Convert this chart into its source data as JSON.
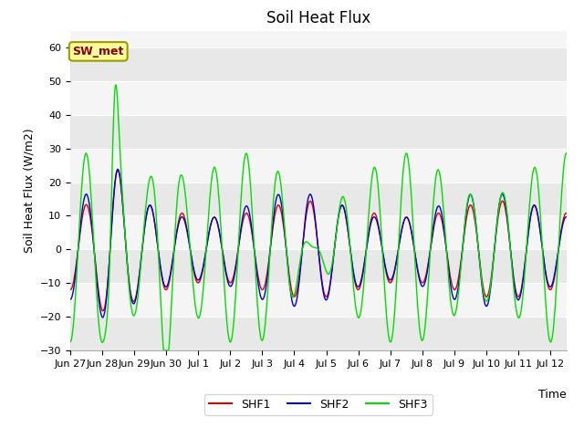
{
  "title": "Soil Heat Flux",
  "ylabel": "Soil Heat Flux (W/m2)",
  "xlabel": "Time",
  "legend_label": "SW_met",
  "ylim": [
    -30,
    65
  ],
  "yticks": [
    -30,
    -20,
    -10,
    0,
    10,
    20,
    30,
    40,
    50,
    60
  ],
  "series_labels": [
    "SHF1",
    "SHF2",
    "SHF3"
  ],
  "colors": [
    "#dd0000",
    "#0000cc",
    "#00dd00"
  ],
  "background_color": "#ffffff",
  "plot_bg_color": "#ffffff",
  "title_fontsize": 12,
  "axis_fontsize": 9,
  "tick_fontsize": 8,
  "legend_fontsize": 9,
  "xtick_labels": [
    "Jun 27",
    "Jun 28",
    "Jun 29",
    "Jun 30",
    "Jul 1",
    "Jul 2",
    "Jul 3",
    "Jul 4",
    "Jul 5",
    "Jul 6",
    "Jul 7",
    "Jul 8",
    "Jul 9",
    "Jul 10",
    "Jul 11",
    "Jul 12"
  ],
  "hband_colors": [
    "#e8e8e8",
    "#f5f5f5"
  ],
  "hband_ranges": [
    [
      -30,
      -20
    ],
    [
      -20,
      -10
    ],
    [
      -10,
      0
    ],
    [
      0,
      10
    ],
    [
      10,
      20
    ],
    [
      20,
      30
    ],
    [
      30,
      40
    ],
    [
      40,
      50
    ],
    [
      50,
      60
    ],
    [
      60,
      70
    ]
  ],
  "hband_pattern": [
    0,
    1,
    0,
    1,
    0,
    1,
    0,
    1,
    0,
    1
  ]
}
